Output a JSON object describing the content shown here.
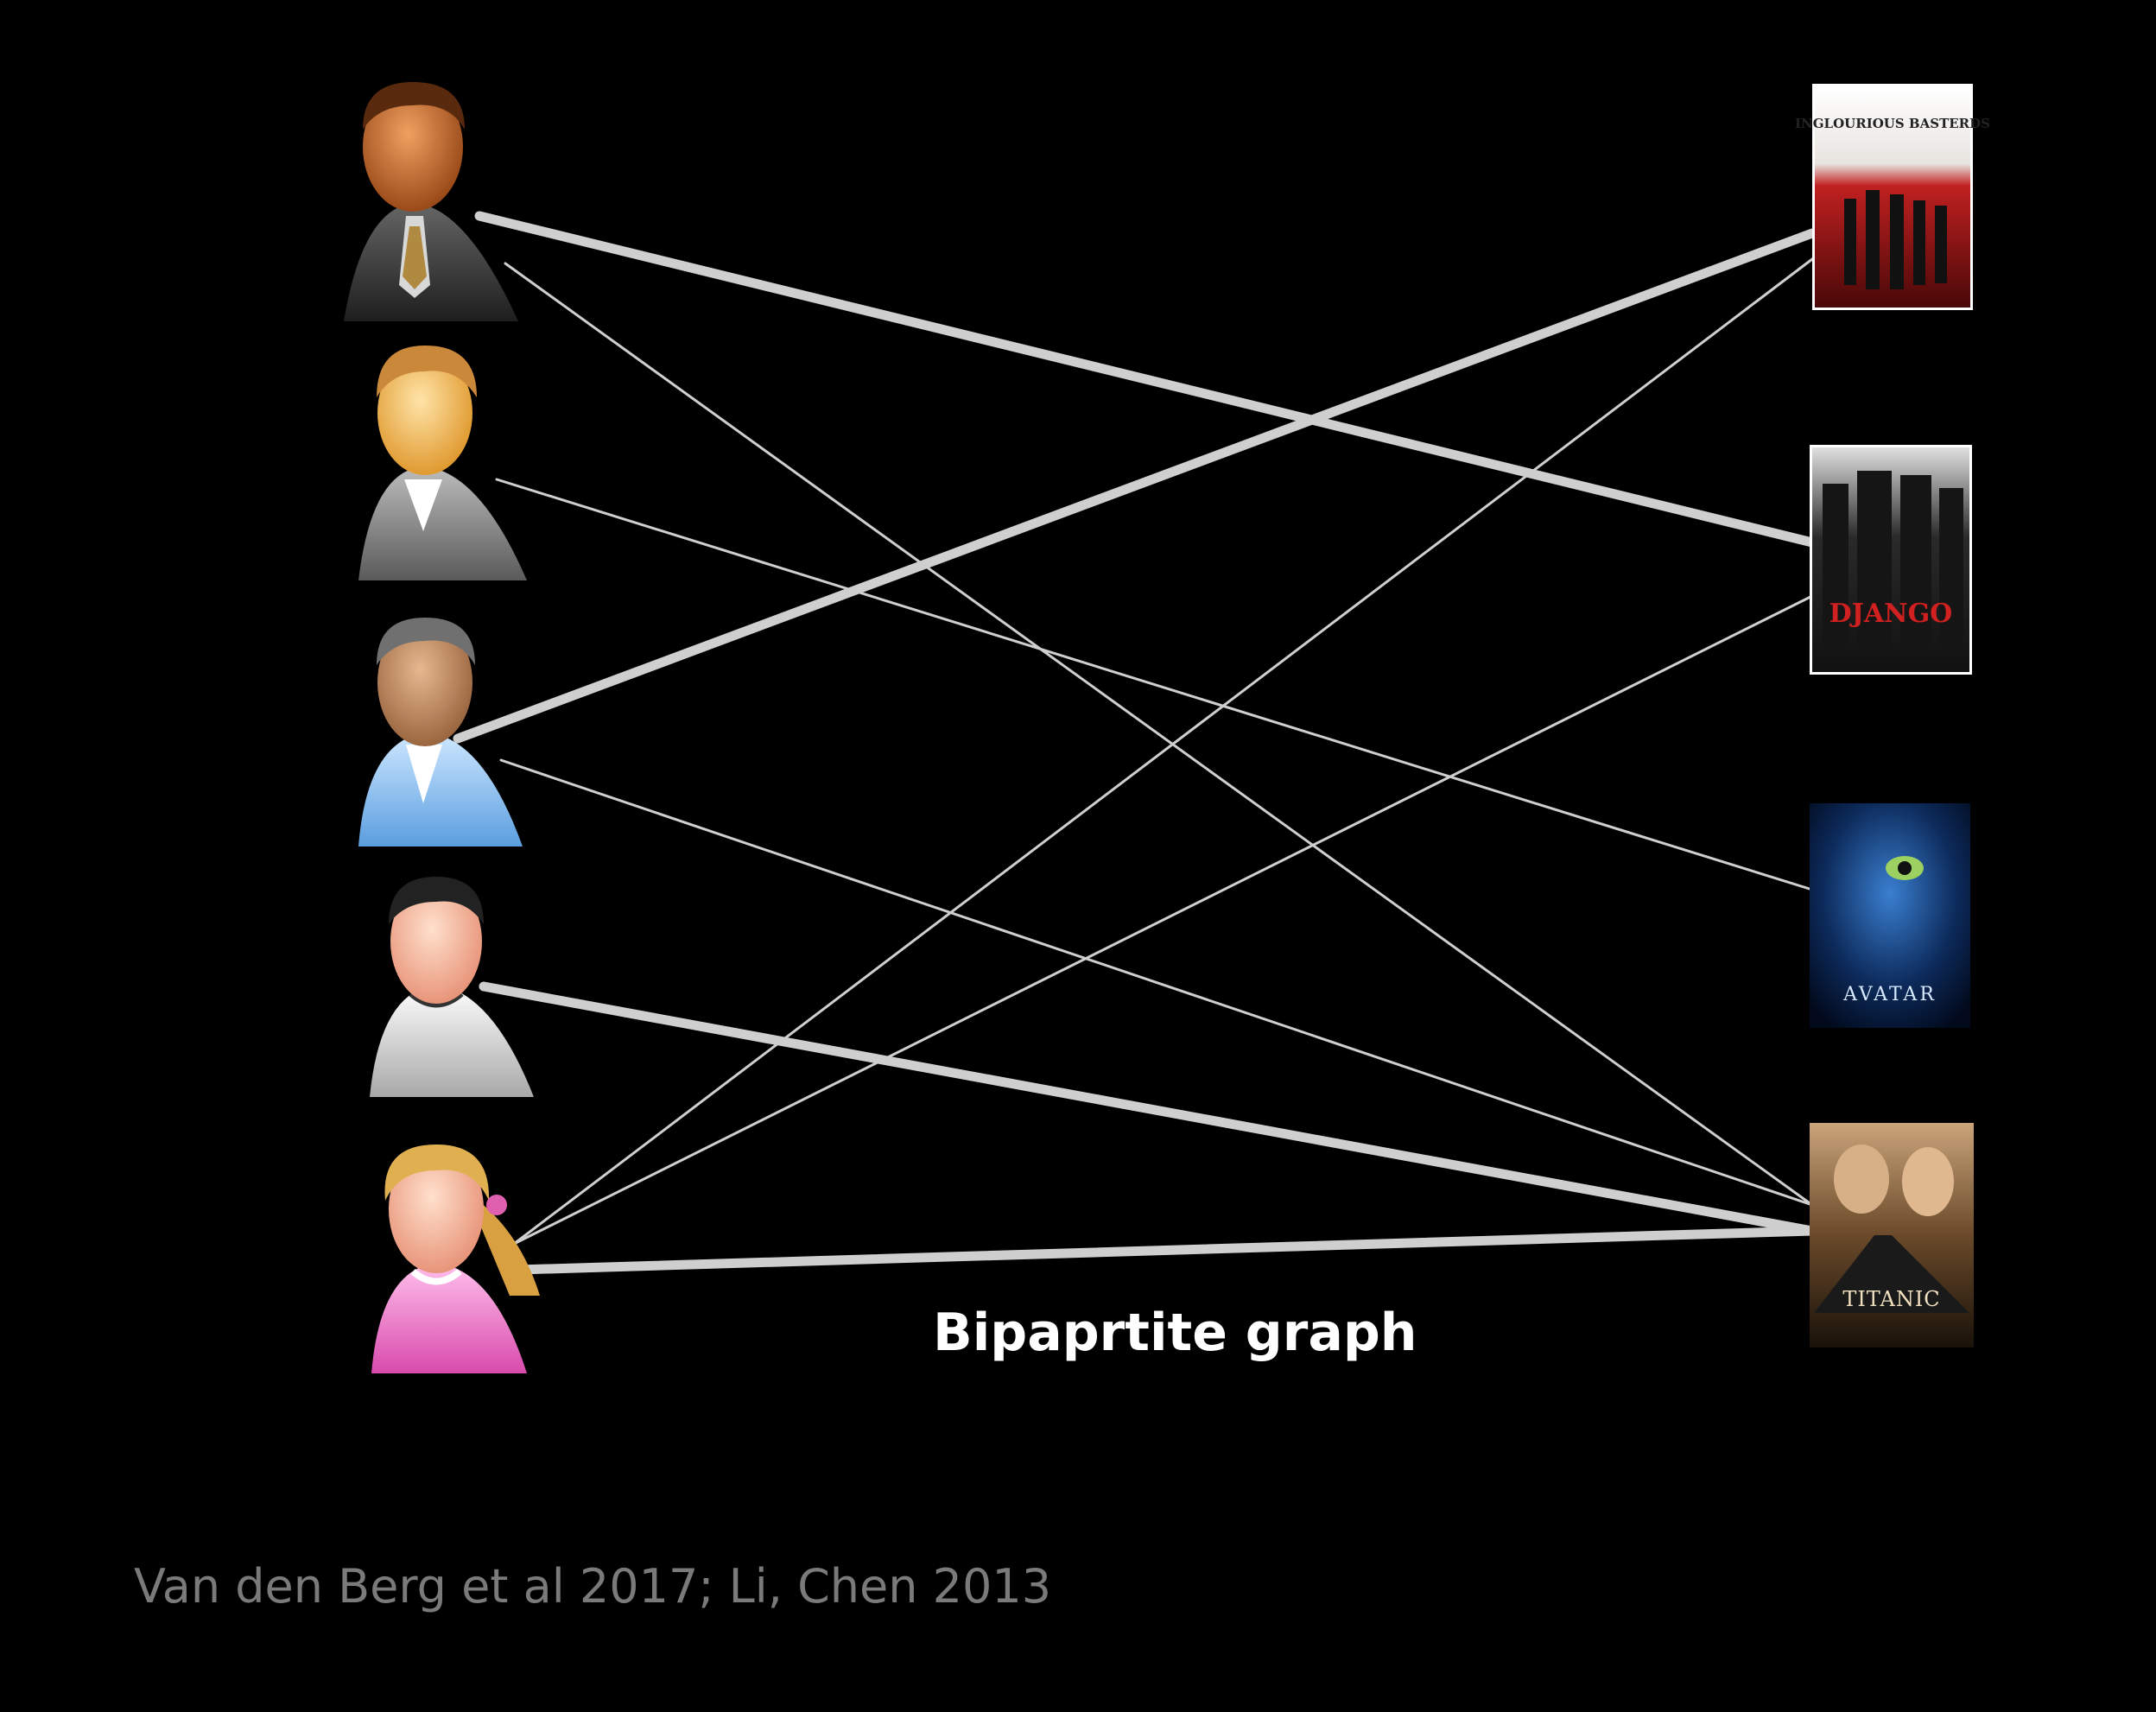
{
  "title": "Bipaprtite graph",
  "citation": "Van den Berg et al 2017; Li, Chen 2013",
  "colors": {
    "background": "#000000",
    "edge": "#cfcfcf",
    "title": "#ffffff",
    "citation": "#7a7a7a"
  },
  "users": [
    {
      "id": "user-1",
      "icon": "man-suit-icon"
    },
    {
      "id": "user-2",
      "icon": "man-grey-shirt-icon"
    },
    {
      "id": "user-3",
      "icon": "man-blue-shirt-icon"
    },
    {
      "id": "user-4",
      "icon": "man-white-tshirt-icon"
    },
    {
      "id": "user-5",
      "icon": "woman-pink-shirt-icon"
    }
  ],
  "movies": [
    {
      "id": "movie-1",
      "poster_title": "INGLOURIOUS BASTERDS",
      "icon": "inglourious-basterds-poster"
    },
    {
      "id": "movie-2",
      "poster_title": "DJANGO",
      "icon": "django-poster"
    },
    {
      "id": "movie-3",
      "poster_title": "AVATAR",
      "icon": "avatar-poster"
    },
    {
      "id": "movie-4",
      "poster_title": "TITANIC",
      "icon": "titanic-poster"
    }
  ],
  "edges": [
    {
      "user": 0,
      "movie": 1,
      "weight": "thick"
    },
    {
      "user": 0,
      "movie": 3,
      "weight": "thin"
    },
    {
      "user": 1,
      "movie": 2,
      "weight": "thin"
    },
    {
      "user": 2,
      "movie": 0,
      "weight": "thick"
    },
    {
      "user": 2,
      "movie": 3,
      "weight": "thin"
    },
    {
      "user": 3,
      "movie": 3,
      "weight": "thick"
    },
    {
      "user": 4,
      "movie": 0,
      "weight": "thin"
    },
    {
      "user": 4,
      "movie": 1,
      "weight": "thin"
    },
    {
      "user": 4,
      "movie": 3,
      "weight": "thick"
    }
  ]
}
